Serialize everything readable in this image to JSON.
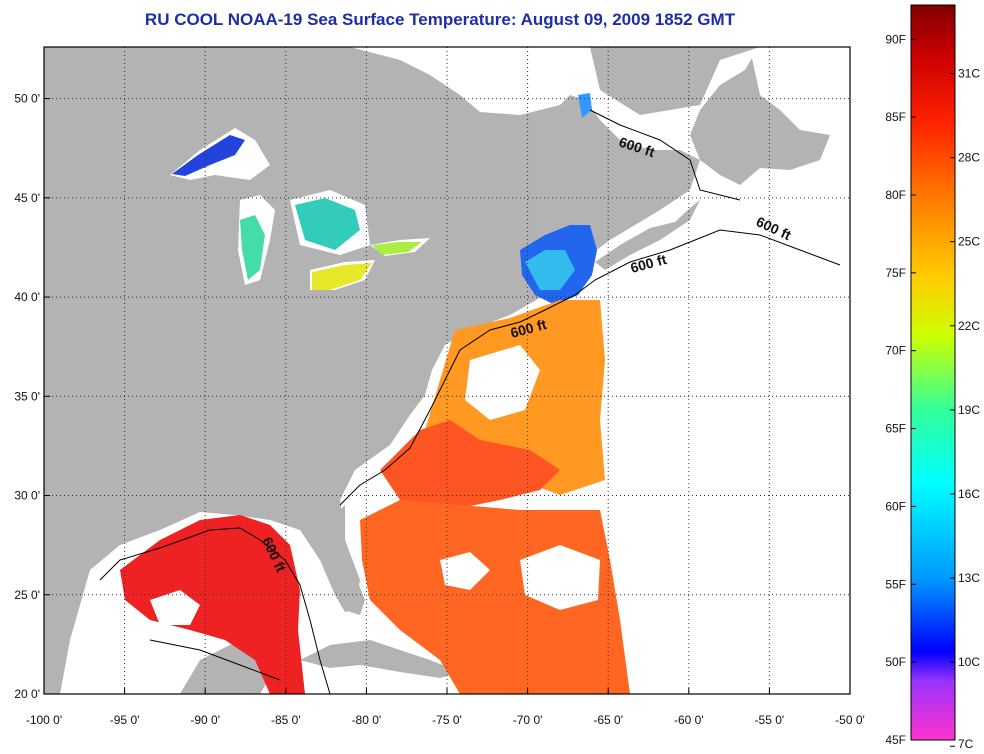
{
  "title": "RU COOL  NOAA-19  Sea Surface Temperature:  August 09, 2009 1852 GMT",
  "map": {
    "lon_ticks": [
      "-100 0'",
      "-95 0'",
      "-90 0'",
      "-85 0'",
      "-80 0'",
      "-75 0'",
      "-70 0'",
      "-65 0'",
      "-60 0'",
      "-55 0'",
      "-50 0'"
    ],
    "lat_ticks": [
      "50 0'",
      "45 0'",
      "40 0'",
      "35 0'",
      "30 0'",
      "25 0'",
      "20 0'"
    ],
    "lon_values": [
      -100,
      -95,
      -90,
      -85,
      -80,
      -75,
      -70,
      -65,
      -60,
      -55,
      -50
    ],
    "lat_values": [
      50,
      45,
      40,
      35,
      30,
      25,
      20
    ],
    "contour_labels": [
      "600 ft",
      "600 ft",
      "600 ft",
      "600 ft",
      "600 ft"
    ],
    "colors": {
      "land": "#b3b3b3",
      "water_nodata": "#ffffff",
      "frame": "#000000"
    }
  },
  "colorbar": {
    "fahrenheit": [
      "90F",
      "85F",
      "80F",
      "75F",
      "70F",
      "65F",
      "60F",
      "55F",
      "50F",
      "45F"
    ],
    "celsius": [
      "31C",
      "28C",
      "25C",
      "22C",
      "19C",
      "16C",
      "13C",
      "10C",
      "7C"
    ],
    "colors": [
      "#ff33cc",
      "#9933ff",
      "#0000ff",
      "#0099ff",
      "#00ffff",
      "#33ff99",
      "#ccff00",
      "#ffcc00",
      "#ff8800",
      "#ff2200",
      "#cc0000",
      "#800000"
    ]
  }
}
